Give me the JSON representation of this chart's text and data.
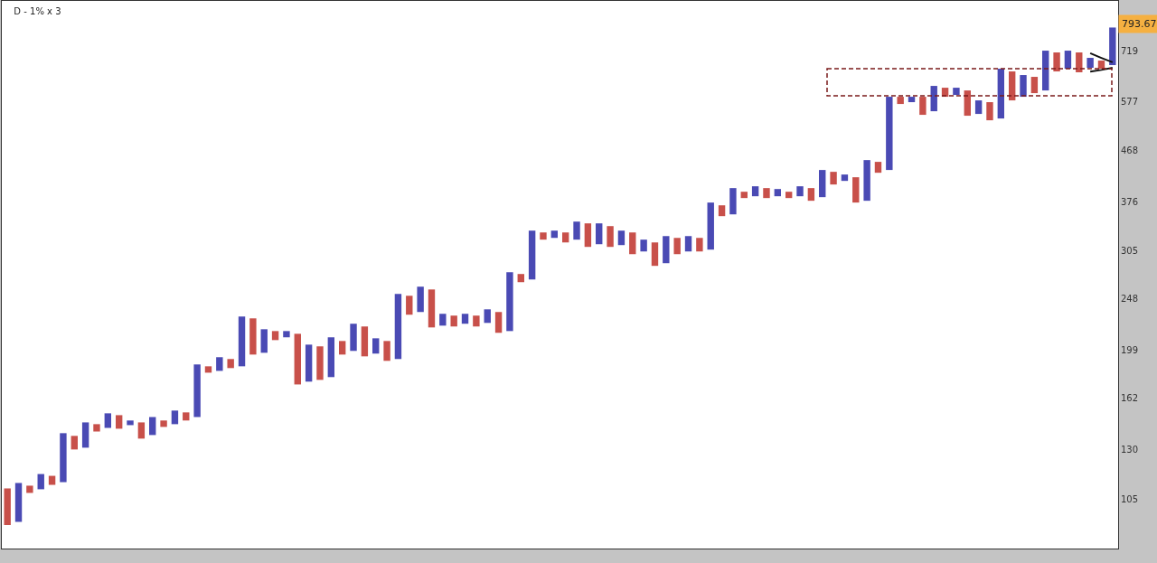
{
  "chart_data": {
    "type": "bar",
    "title": "D - 1% x 3",
    "log": "y",
    "tick_labels": "y",
    "categories": [
      null,
      null,
      null,
      null,
      null,
      null,
      null,
      null,
      null,
      null,
      null,
      null,
      null,
      null,
      null,
      null,
      null,
      null,
      null,
      null,
      null,
      null,
      null,
      null,
      null,
      null,
      null,
      null,
      null,
      null,
      null,
      null,
      null,
      null,
      null,
      null,
      null,
      null,
      null,
      null,
      null,
      null,
      null,
      null,
      null,
      null,
      null,
      null,
      null,
      null,
      null,
      null,
      null,
      null,
      null,
      null,
      null,
      null,
      null,
      null,
      null,
      null,
      null,
      null,
      null,
      null,
      null,
      null,
      null,
      null,
      null,
      null,
      null,
      null,
      null,
      null,
      null,
      null,
      null,
      null,
      null,
      null,
      null,
      null,
      null,
      null,
      null,
      null,
      null,
      null,
      null,
      null,
      null,
      null,
      null,
      null,
      null,
      null,
      null,
      null
    ],
    "base": [
      94.0,
      95.3,
      107.9,
      109.6,
      111.7,
      113.0,
      130.0,
      131.0,
      140.4,
      142.6,
      142.1,
      144.3,
      136.2,
      138.3,
      143.2,
      144.9,
      147.2,
      149.4,
      180.7,
      182.1,
      184.3,
      185.7,
      195.3,
      196.8,
      207.8,
      210.3,
      171.8,
      173.9,
      175.2,
      177.3,
      195.3,
      198.4,
      193.8,
      196.1,
      190.1,
      191.6,
      231.7,
      234.4,
      219.4,
      221.1,
      220.3,
      222.9,
      220.3,
      223.7,
      214.4,
      216.0,
      266.4,
      269.5,
      319.7,
      322.1,
      315.9,
      319.7,
      309.9,
      313.5,
      309.9,
      312.3,
      300.4,
      303.9,
      285.7,
      289.0,
      300.4,
      303.9,
      303.9,
      306.3,
      353.6,
      356.3,
      382.1,
      385.1,
      382.1,
      385.1,
      382.1,
      385.1,
      377.7,
      383.6,
      405.0,
      411.3,
      374.8,
      377.7,
      425.9,
      431.0,
      572.0,
      576.5,
      546.0,
      554.5,
      590.0,
      594.6,
      543.9,
      548.1,
      533.4,
      537.5,
      580.9,
      590.0,
      599.2,
      606.2,
      657.7,
      665.4,
      655.2,
      668.0,
      665.4,
      675.8
    ],
    "values": [
      16.0,
      17.3,
      3.4,
      7.4,
      4.4,
      26.4,
      7.8,
      15.0,
      4.5,
      9.2,
      8.5,
      2.9,
      9.8,
      11.1,
      4.0,
      8.7,
      5.2,
      37.8,
      5.0,
      11.0,
      7.3,
      44.2,
      32.8,
      20.9,
      8.2,
      5.7,
      41.7,
      29.9,
      27.1,
      33.0,
      11.7,
      24.5,
      26.5,
      13.3,
      16.9,
      61.7,
      19.6,
      26.9,
      38.8,
      11.5,
      10.5,
      9.7,
      10.5,
      13.4,
      20.0,
      62.0,
      9.5,
      62.8,
      10.0,
      10.2,
      13.8,
      25.7,
      32.9,
      29.3,
      28.9,
      20.0,
      29.3,
      15.8,
      30.2,
      35.6,
      21.7,
      20.7,
      18.2,
      68.5,
      16.8,
      42.5,
      10.5,
      16.8,
      16.7,
      12.1,
      10.5,
      16.8,
      21.1,
      47.4,
      22.6,
      11.4,
      43.0,
      72.0,
      20.4,
      159.0,
      18.0,
      13.5,
      44.0,
      63.6,
      23.3,
      18.7,
      62.3,
      32.8,
      43.1,
      127.9,
      76.8,
      57.6,
      43.4,
      112.8,
      55.8,
      53.6,
      58.3,
      29.1,
      23.6,
      118.2
    ],
    "colors": [
      "#c8504a",
      "#4a4ab4",
      "#c8504a",
      "#4a4ab4",
      "#c8504a",
      "#4a4ab4",
      "#c8504a",
      "#4a4ab4",
      "#c8504a",
      "#4a4ab4",
      "#c8504a",
      "#4a4ab4",
      "#c8504a",
      "#4a4ab4",
      "#c8504a",
      "#4a4ab4",
      "#c8504a",
      "#4a4ab4",
      "#c8504a",
      "#4a4ab4",
      "#c8504a",
      "#4a4ab4",
      "#c8504a",
      "#4a4ab4",
      "#c8504a",
      "#4a4ab4",
      "#c8504a",
      "#4a4ab4",
      "#c8504a",
      "#4a4ab4",
      "#c8504a",
      "#4a4ab4",
      "#c8504a",
      "#4a4ab4",
      "#c8504a",
      "#4a4ab4",
      "#c8504a",
      "#4a4ab4",
      "#c8504a",
      "#4a4ab4",
      "#c8504a",
      "#4a4ab4",
      "#c8504a",
      "#4a4ab4",
      "#c8504a",
      "#4a4ab4",
      "#c8504a",
      "#4a4ab4",
      "#c8504a",
      "#4a4ab4",
      "#c8504a",
      "#4a4ab4",
      "#c8504a",
      "#4a4ab4",
      "#c8504a",
      "#4a4ab4",
      "#c8504a",
      "#4a4ab4",
      "#c8504a",
      "#4a4ab4",
      "#c8504a",
      "#4a4ab4",
      "#c8504a",
      "#4a4ab4",
      "#c8504a",
      "#4a4ab4",
      "#c8504a",
      "#4a4ab4",
      "#c8504a",
      "#4a4ab4",
      "#c8504a",
      "#4a4ab4",
      "#c8504a",
      "#4a4ab4",
      "#c8504a",
      "#4a4ab4",
      "#c8504a",
      "#4a4ab4",
      "#c8504a",
      "#4a4ab4",
      "#c8504a",
      "#4a4ab4",
      "#c8504a",
      "#4a4ab4",
      "#c8504a",
      "#4a4ab4",
      "#c8504a",
      "#4a4ab4",
      "#c8504a",
      "#4a4ab4",
      "#c8504a",
      "#4a4ab4",
      "#c8504a",
      "#4a4ab4",
      "#c8504a",
      "#4a4ab4",
      "#c8504a",
      "#4a4ab4",
      "#c8504a",
      "#4a4ab4"
    ],
    "ylim": [
      85,
      890
    ],
    "yticks": [
      105,
      130,
      162,
      199,
      248,
      305,
      376,
      468,
      577,
      719
    ],
    "annotations": [
      "793.67"
    ],
    "series": [
      {
        "type": "line",
        "values": [
          null,
          null,
          null,
          null,
          null,
          null,
          null,
          null,
          null,
          null,
          null,
          null,
          null,
          null,
          null,
          null,
          null,
          null,
          null,
          null,
          null,
          null,
          null,
          null,
          null,
          null,
          null,
          null,
          null,
          null,
          null,
          null,
          null,
          null,
          null,
          null,
          null,
          null,
          null,
          null,
          null,
          null,
          null,
          null,
          null,
          null,
          null,
          null,
          null,
          null,
          null,
          null,
          null,
          null,
          null,
          null,
          null,
          null,
          null,
          null,
          null,
          null,
          null,
          null,
          null,
          null,
          null,
          null,
          null,
          null,
          null,
          null,
          null,
          null,
          null,
          null,
          null,
          null,
          null,
          null,
          null,
          null,
          null,
          null,
          null,
          null,
          null,
          null,
          null,
          null,
          null,
          null,
          null,
          null,
          null,
          null,
          null,
          711,
          697,
          684
        ],
        "color": "#111111"
      },
      {
        "type": "line",
        "values": [
          null,
          null,
          null,
          null,
          null,
          null,
          null,
          null,
          null,
          null,
          null,
          null,
          null,
          null,
          null,
          null,
          null,
          null,
          null,
          null,
          null,
          null,
          null,
          null,
          null,
          null,
          null,
          null,
          null,
          null,
          null,
          null,
          null,
          null,
          null,
          null,
          null,
          null,
          null,
          null,
          null,
          null,
          null,
          null,
          null,
          null,
          null,
          null,
          null,
          null,
          null,
          null,
          null,
          null,
          null,
          null,
          null,
          null,
          null,
          null,
          null,
          null,
          null,
          null,
          null,
          null,
          null,
          null,
          null,
          null,
          null,
          null,
          null,
          null,
          null,
          null,
          null,
          null,
          null,
          null,
          null,
          null,
          null,
          null,
          null,
          null,
          null,
          null,
          null,
          null,
          null,
          null,
          null,
          null,
          null,
          null,
          null,
          657,
          662,
          668
        ],
        "color": "#111111"
      }
    ]
  }
}
